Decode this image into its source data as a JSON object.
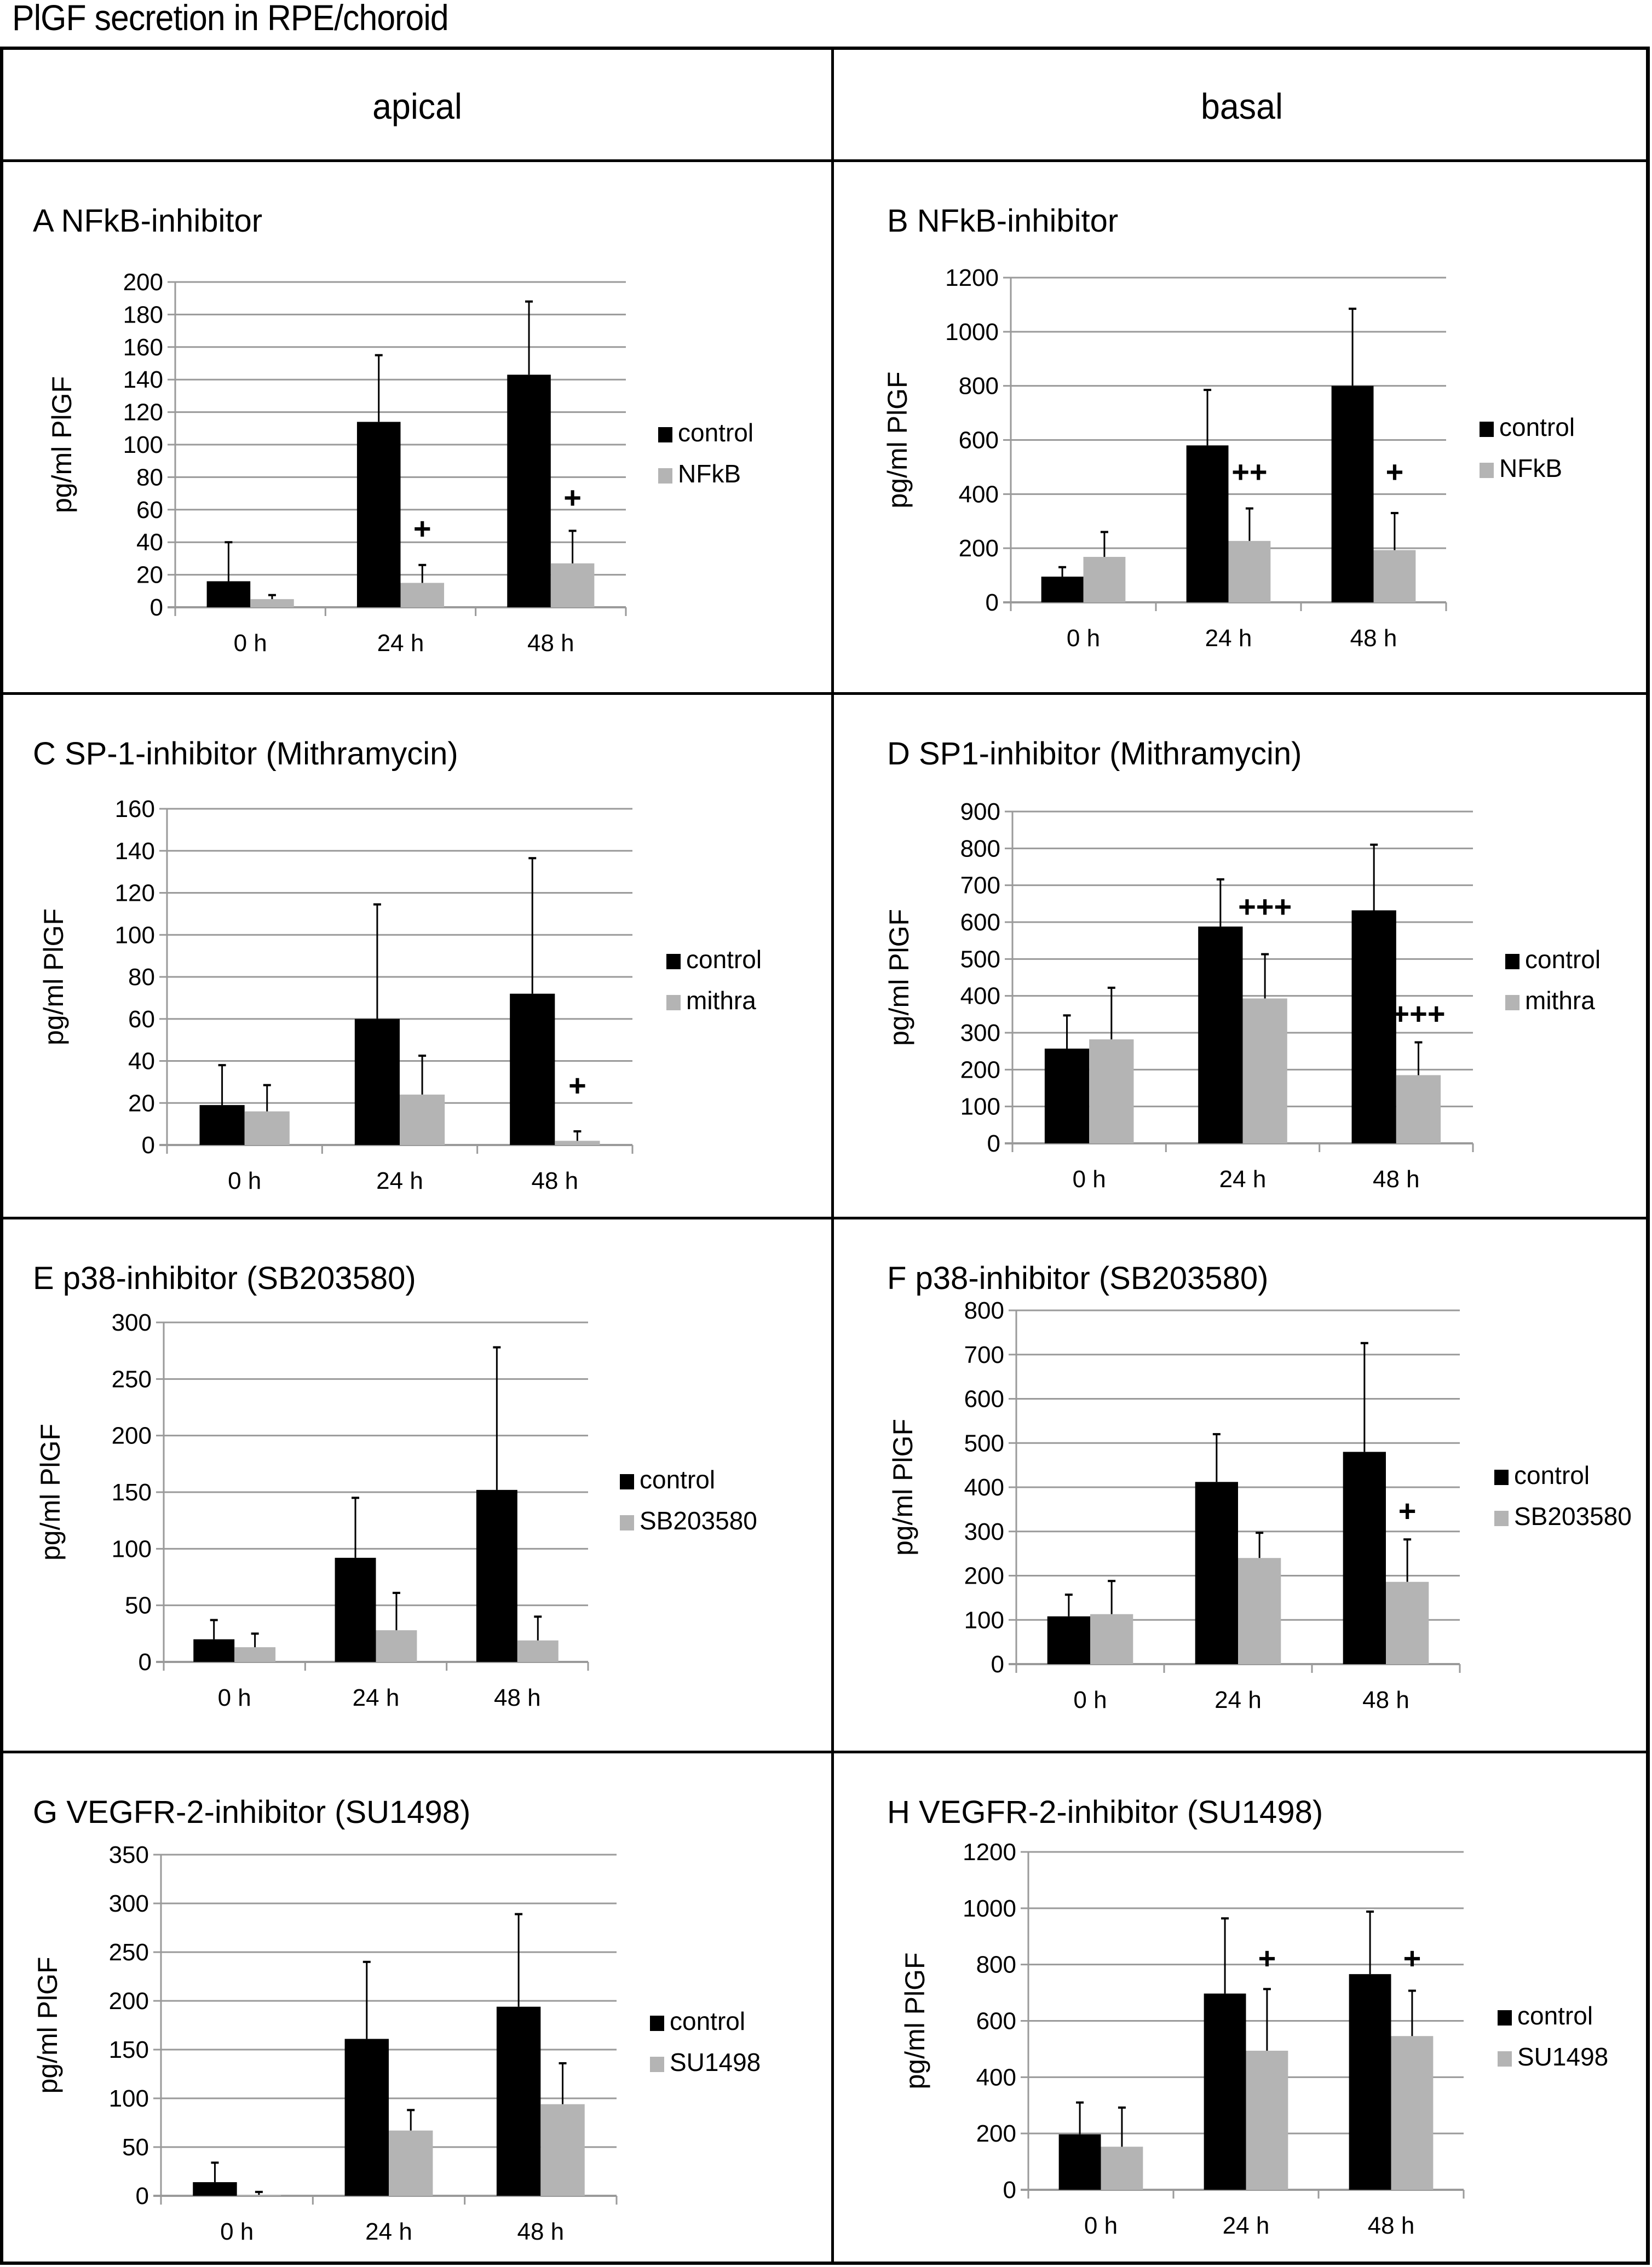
{
  "figure_title": "PlGF secretion in RPE/choroid",
  "column_headers": [
    "apical",
    "basal"
  ],
  "colors": {
    "control": "#000000",
    "treatment": "#b4b4b4",
    "grid": "#9a9a9a"
  },
  "chart_data": [
    {
      "id": "A",
      "type": "bar",
      "title": "A  NFkB-inhibitor",
      "column": "apical",
      "ylabel": "pg/ml PlGF",
      "xlabel": "",
      "ylim": [
        0,
        200
      ],
      "ystep": 20,
      "grid": true,
      "legend": "right",
      "categories": [
        "0 h",
        "24 h",
        "48 h"
      ],
      "series": [
        {
          "name": "control",
          "values": [
            16,
            114,
            143
          ],
          "err_upper": [
            40,
            155,
            188
          ]
        },
        {
          "name": "NFkB",
          "values": [
            5,
            15,
            27
          ],
          "err_upper": [
            7.5,
            26,
            47
          ]
        }
      ],
      "annotations": [
        {
          "category": "24 h",
          "text": "+",
          "y": 48
        },
        {
          "category": "48 h",
          "text": "+",
          "y": 67
        }
      ]
    },
    {
      "id": "B",
      "type": "bar",
      "title": "B  NFkB-inhibitor",
      "column": "basal",
      "ylabel": "pg/ml PlGF",
      "xlabel": "",
      "ylim": [
        0,
        1200
      ],
      "ystep": 200,
      "grid": true,
      "legend": "right",
      "categories": [
        "0 h",
        "24 h",
        "48 h"
      ],
      "series": [
        {
          "name": "control",
          "values": [
            95,
            580,
            800
          ],
          "err_upper": [
            130,
            785,
            1085
          ]
        },
        {
          "name": "NFkB",
          "values": [
            168,
            227,
            193
          ],
          "err_upper": [
            260,
            347,
            330
          ]
        }
      ],
      "annotations": [
        {
          "category": "24 h",
          "text": "++",
          "y": 480
        },
        {
          "category": "48 h",
          "text": "+",
          "y": 480
        }
      ]
    },
    {
      "id": "C",
      "type": "bar",
      "title": "C  SP-1-inhibitor (Mithramycin)",
      "column": "apical",
      "ylabel": "pg/ml PlGF",
      "xlabel": "",
      "ylim": [
        0,
        160
      ],
      "ystep": 20,
      "grid": true,
      "legend": "right",
      "categories": [
        "0 h",
        "24 h",
        "48 h"
      ],
      "series": [
        {
          "name": "control",
          "values": [
            19,
            60,
            72
          ],
          "err_upper": [
            38,
            114.5,
            136.5
          ]
        },
        {
          "name": "mithra",
          "values": [
            16,
            24,
            2
          ],
          "err_upper": [
            28.5,
            42.5,
            6.5
          ]
        }
      ],
      "annotations": [
        {
          "category": "48 h",
          "text": "+",
          "y": 28
        }
      ]
    },
    {
      "id": "D",
      "type": "bar",
      "title": "D  SP1-inhibitor (Mithramycin)",
      "column": "basal",
      "ylabel": "pg/ml PlGF",
      "xlabel": "",
      "ylim": [
        0,
        900
      ],
      "ystep": 100,
      "grid": true,
      "legend": "right",
      "categories": [
        "0 h",
        "24 h",
        "48 h"
      ],
      "series": [
        {
          "name": "control",
          "values": [
            257,
            588,
            632
          ],
          "err_upper": [
            347,
            716,
            810
          ]
        },
        {
          "name": "mithra",
          "values": [
            282,
            393,
            185
          ],
          "err_upper": [
            422,
            513,
            274
          ]
        }
      ],
      "annotations": [
        {
          "category": "24 h",
          "text": "+++",
          "y": 640
        },
        {
          "category": "48 h",
          "text": "+++",
          "y": 350
        }
      ]
    },
    {
      "id": "E",
      "type": "bar",
      "title": "E  p38-inhibitor (SB203580)",
      "column": "apical",
      "ylabel": "pg/ml PlGF",
      "xlabel": "",
      "ylim": [
        0,
        300
      ],
      "ystep": 50,
      "grid": true,
      "legend": "right",
      "categories": [
        "0 h",
        "24 h",
        "48 h"
      ],
      "series": [
        {
          "name": "control",
          "values": [
            20,
            92,
            152
          ],
          "err_upper": [
            37,
            145,
            278
          ]
        },
        {
          "name": "SB203580",
          "values": [
            13,
            28,
            19
          ],
          "err_upper": [
            25,
            61,
            40
          ]
        }
      ],
      "annotations": []
    },
    {
      "id": "F",
      "type": "bar",
      "title": "F  p38-inhibitor (SB203580)",
      "column": "basal",
      "ylabel": "pg/ml PlGF",
      "xlabel": "",
      "ylim": [
        0,
        800
      ],
      "ystep": 100,
      "grid": true,
      "legend": "right",
      "categories": [
        "0 h",
        "24 h",
        "48 h"
      ],
      "series": [
        {
          "name": "control",
          "values": [
            108,
            412,
            480
          ],
          "err_upper": [
            157,
            520,
            726
          ]
        },
        {
          "name": "SB203580",
          "values": [
            113,
            240,
            186
          ],
          "err_upper": [
            188,
            297,
            282
          ]
        }
      ],
      "annotations": [
        {
          "category": "48 h",
          "text": "+",
          "y": 345
        }
      ]
    },
    {
      "id": "G",
      "type": "bar",
      "title": "G  VEGFR-2-inhibitor (SU1498)",
      "column": "apical",
      "ylabel": "pg/ml PlGF",
      "xlabel": "",
      "ylim": [
        0,
        350
      ],
      "ystep": 50,
      "grid": true,
      "legend": "right",
      "categories": [
        "0 h",
        "24 h",
        "48 h"
      ],
      "series": [
        {
          "name": "control",
          "values": [
            14,
            161,
            194
          ],
          "err_upper": [
            34,
            240,
            289
          ]
        },
        {
          "name": "SU1498",
          "values": [
            1,
            67,
            94
          ],
          "err_upper": [
            4,
            88,
            136
          ]
        }
      ],
      "annotations": []
    },
    {
      "id": "H",
      "type": "bar",
      "title": "H  VEGFR-2-inhibitor (SU1498)",
      "column": "basal",
      "ylabel": "pg/ml PlGF",
      "xlabel": "",
      "ylim": [
        0,
        1200
      ],
      "ystep": 200,
      "grid": true,
      "legend": "right",
      "categories": [
        "0 h",
        "24 h",
        "48 h"
      ],
      "series": [
        {
          "name": "control",
          "values": [
            197,
            697,
            766
          ],
          "err_upper": [
            310,
            964,
            988
          ]
        },
        {
          "name": "SU1498",
          "values": [
            153,
            494,
            546
          ],
          "err_upper": [
            292,
            713,
            707
          ]
        }
      ],
      "annotations": [
        {
          "category": "24 h",
          "text": "+",
          "y": 820
        },
        {
          "category": "48 h",
          "text": "+",
          "y": 820
        }
      ]
    }
  ]
}
